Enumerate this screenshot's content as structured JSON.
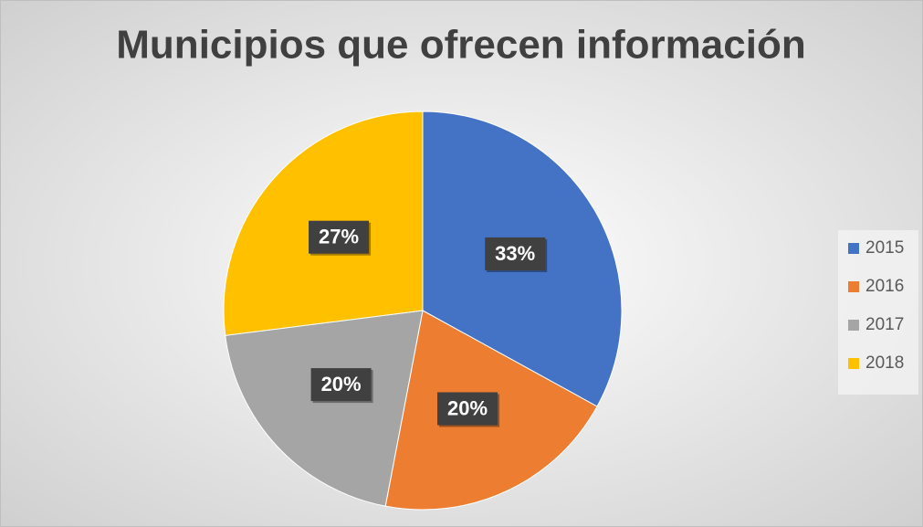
{
  "chart_data": {
    "type": "pie",
    "title": "Municipios que ofrecen información",
    "categories": [
      "2015",
      "2016",
      "2017",
      "2018"
    ],
    "values": [
      33,
      20,
      20,
      27
    ],
    "value_labels": [
      "33%",
      "20%",
      "20%",
      "27%"
    ],
    "colors": [
      "#4472c4",
      "#ed7d31",
      "#a5a5a5",
      "#ffc000"
    ],
    "legend": "right"
  }
}
